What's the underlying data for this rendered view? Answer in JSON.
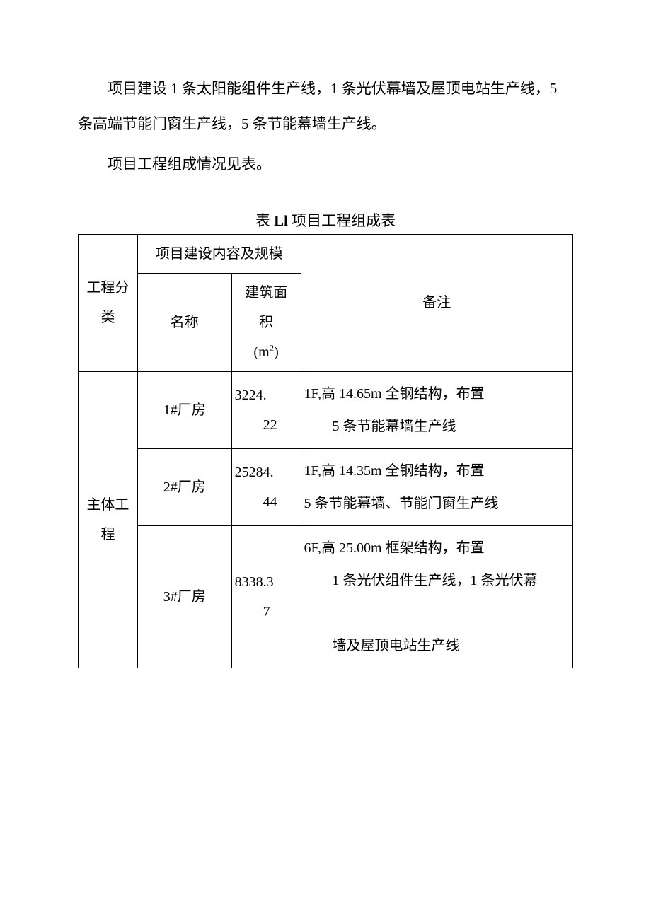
{
  "paragraphs": {
    "p1": "项目建设 1 条太阳能组件生产线，1 条光伏幕墙及屋顶电站生产线，5 条高端节能门窗生产线，5 条节能幕墙生产线。",
    "p2": "项目工程组成情况见表。"
  },
  "table": {
    "title_prefix": "表 ",
    "title_bold": "Ll",
    "title_suffix": " 项目工程组成表",
    "headers": {
      "eng_class": "工程分类",
      "content_scope": "项目建设内容及规模",
      "name": "名称",
      "area_l1": "建筑面",
      "area_l2": "积",
      "area_l3_prefix": "(m",
      "area_l3_sup": "2",
      "area_l3_suffix": ")",
      "notes": "备注"
    },
    "col_widths": {
      "c1": "12%",
      "c2": "19%",
      "c3": "14%",
      "c4": "55%"
    },
    "rows": [
      {
        "group": "主体工程",
        "name": "1#厂房",
        "area_l1": "3224.",
        "area_l2": "22",
        "note_l1": "1F,高 14.65m 全钢结构，布置",
        "note_l2": "5 条节能幕墙生产线"
      },
      {
        "name": "2#厂房",
        "area_l1": "25284.",
        "area_l2": "44",
        "note_l1": "1F,高 14.35m 全钢结构，布置",
        "note_l2": "5 条节能幕墙、节能门窗生产线"
      },
      {
        "name": "3#厂房",
        "area_l1": "8338.3",
        "area_l2": "7",
        "note_l1": "6F,高 25.00m 框架结构，布置",
        "note_l2": "1 条光伏组件生产线，1 条光伏幕",
        "note_l3": "墙及屋顶电站生产线"
      }
    ]
  },
  "colors": {
    "text": "#000000",
    "bg": "#ffffff",
    "border": "#000000"
  },
  "typography": {
    "body_fontsize": 21,
    "table_fontsize": 20,
    "line_height_body": 2.4,
    "line_height_table": 2.1
  }
}
